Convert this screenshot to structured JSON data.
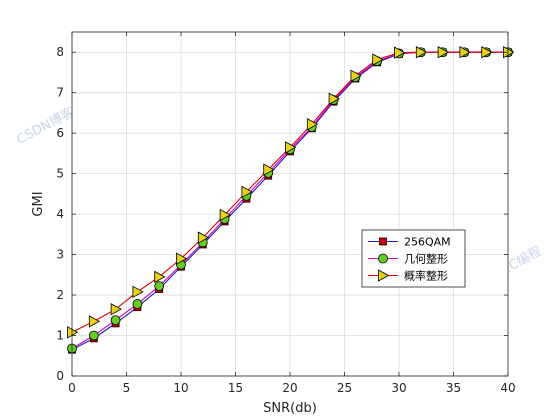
{
  "watermark": "CSDN博客：我爱C编程",
  "chart_data": {
    "type": "line",
    "xlabel": "SNR(db)",
    "ylabel": "GMI",
    "xlim": [
      0,
      40
    ],
    "ylim": [
      0,
      8.5
    ],
    "xticks": [
      0,
      5,
      10,
      15,
      20,
      25,
      30,
      35,
      40
    ],
    "yticks": [
      0,
      1,
      2,
      3,
      4,
      5,
      6,
      7,
      8
    ],
    "grid": true,
    "legend_position": "lower-right",
    "x": [
      0,
      2,
      4,
      6,
      8,
      10,
      12,
      14,
      16,
      18,
      20,
      22,
      24,
      26,
      28,
      30,
      32,
      34,
      36,
      38,
      40
    ],
    "series": [
      {
        "name": "256QAM",
        "color": "#1f1fb0",
        "marker": "square",
        "marker_color": "#cc0000",
        "values": [
          0.65,
          0.93,
          1.3,
          1.7,
          2.15,
          2.7,
          3.25,
          3.82,
          4.38,
          4.95,
          5.55,
          6.12,
          6.78,
          7.35,
          7.75,
          7.96,
          8.0,
          8.0,
          8.0,
          8.0,
          8.0
        ]
      },
      {
        "name": "几何整形",
        "color": "#cc00cc",
        "marker": "circle",
        "marker_color": "#66cc22",
        "values": [
          0.68,
          1.0,
          1.38,
          1.78,
          2.22,
          2.75,
          3.3,
          3.88,
          4.45,
          5.02,
          5.6,
          6.15,
          6.82,
          7.38,
          7.78,
          7.97,
          8.0,
          8.0,
          8.0,
          8.0,
          8.0
        ]
      },
      {
        "name": "概率整形",
        "color": "#dd0000",
        "marker": "triangle-right",
        "marker_color": "#e6d21a",
        "values": [
          1.08,
          1.35,
          1.65,
          2.08,
          2.45,
          2.9,
          3.42,
          3.98,
          4.55,
          5.1,
          5.65,
          6.22,
          6.85,
          7.42,
          7.82,
          7.99,
          8.0,
          8.0,
          8.0,
          8.0,
          8.0
        ]
      }
    ]
  }
}
